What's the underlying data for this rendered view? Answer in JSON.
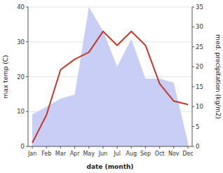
{
  "chart_data": {
    "type": "line",
    "categories": [
      "Jan",
      "Feb",
      "Mar",
      "Apr",
      "May",
      "Jun",
      "Jul",
      "Aug",
      "Sep",
      "Oct",
      "Nov",
      "Dec"
    ],
    "series": [
      {
        "type": "area",
        "color": "#c8cef5",
        "axis": "y2",
        "values": [
          8,
          10,
          12,
          13,
          35,
          29,
          20,
          27,
          17,
          17,
          16,
          1
        ]
      },
      {
        "type": "line",
        "color": "#c0392b",
        "values": [
          1,
          9,
          22,
          25,
          27,
          33,
          29,
          33,
          29,
          18,
          13,
          12
        ]
      }
    ],
    "x_label": "date (month)",
    "y_label": "max temp (C)",
    "y2_label": "med. precipitation (kg/m2)",
    "ylim": [
      0,
      40
    ],
    "yticks": [
      0,
      10,
      20,
      30,
      40
    ],
    "y2lim": [
      0,
      35
    ],
    "y2ticks": [
      0,
      5,
      10,
      15,
      20,
      25,
      30,
      35
    ],
    "grid": true
  }
}
